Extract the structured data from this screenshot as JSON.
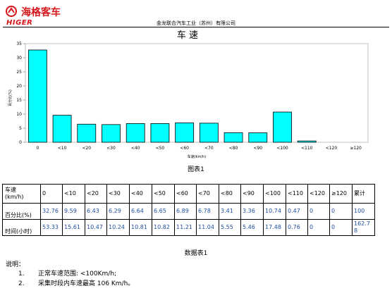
{
  "header": {
    "brand_cn": "海格客车",
    "brand_en": "HIGER",
    "company": "金龙联合汽车工业（苏州）有限公司"
  },
  "colors": {
    "bar": "#00ffff",
    "brand": "#d7141a",
    "number": "#1f4fa0"
  },
  "chart_data": {
    "type": "bar",
    "title": "车 速",
    "xlabel": "车速(km/h)",
    "ylabel": "百分比(%)",
    "categories": [
      "0",
      "<10",
      "<20",
      "<30",
      "<40",
      "<50",
      "<60",
      "<70",
      "<80",
      "<90",
      "<100",
      "<110",
      "<120",
      "≥120"
    ],
    "values": [
      32.76,
      9.59,
      6.43,
      6.29,
      6.64,
      6.65,
      6.89,
      6.78,
      3.41,
      3.36,
      10.74,
      0.47,
      0,
      0
    ],
    "ylim": [
      0,
      35
    ],
    "yticks": [
      "0",
      "5",
      "10",
      "15",
      "20",
      "25",
      "30",
      "35"
    ],
    "grid": false,
    "caption": "图表1"
  },
  "table": {
    "header_label_top": "车速",
    "header_label_bottom": "(km/h)",
    "columns": [
      "0",
      "<10",
      "<20",
      "<30",
      "<40",
      "<50",
      "<60",
      "<70",
      "<80",
      "<90",
      "<100",
      "<110",
      "<120",
      "≥120",
      "累计"
    ],
    "row1_label": "百分比(%)",
    "row1_values": [
      "32.76",
      "9.59",
      "6.43",
      "6.29",
      "6.64",
      "6.65",
      "6.89",
      "6.78",
      "3.41",
      "3.36",
      "10.74",
      "0.47",
      "0",
      "0",
      "100"
    ],
    "row2_label": "时间(小时)",
    "row2_values": [
      "53.33",
      "15.61",
      "10.47",
      "10.24",
      "10.81",
      "10.82",
      "11.21",
      "11.04",
      "5.55",
      "5.46",
      "17.48",
      "0.76",
      "0",
      "0",
      "162.7\n8"
    ],
    "caption": "数据表1"
  },
  "notes": {
    "title": "说明：",
    "items": [
      {
        "num": "1.",
        "text": "正常车速范围: <100Km/h;"
      },
      {
        "num": "2.",
        "text": "采集时段内车速最高 106 Km/h。"
      }
    ]
  }
}
